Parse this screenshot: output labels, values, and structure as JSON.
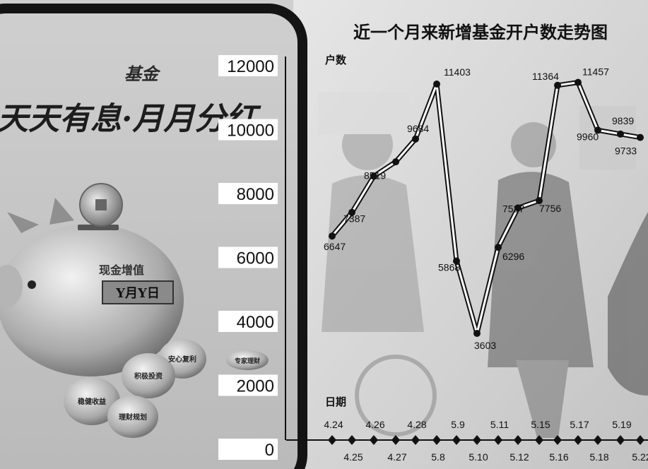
{
  "chart_data": {
    "type": "line",
    "title": "近一个月来新增基金开户数走势图",
    "ylabel": "户数",
    "xlabel": "日期",
    "ylim": [
      0,
      12000
    ],
    "yticks": [
      "12000",
      "10000",
      "8000",
      "6000",
      "4000",
      "2000",
      "0"
    ],
    "x": [
      "4.24",
      "4.25",
      "4.26",
      "4.27",
      "4.28",
      "5.8",
      "5.9",
      "5.10",
      "5.11",
      "5.12",
      "5.15",
      "5.16",
      "5.17",
      "5.18",
      "5.19",
      "5.22"
    ],
    "values": [
      6647,
      7387,
      8519,
      8970,
      9684,
      11403,
      5868,
      3603,
      6296,
      7527,
      7756,
      11364,
      11457,
      9960,
      9839,
      9733
    ],
    "labels": [
      "6647",
      "7387",
      "8519",
      "",
      "9684",
      "11403",
      "5868",
      "3603",
      "6296",
      "7527",
      "7756",
      "11364",
      "11457",
      "9960",
      "9839",
      "9733"
    ],
    "grid": false,
    "line_color": "#111111"
  },
  "poster": {
    "brand": "基金",
    "slogan": "天天有息·月月分红",
    "coin_tag": "现金增值",
    "coin_plate": "Y月Y日",
    "pig_tags": [
      "安心复利",
      "积极投资",
      "稳健收益",
      "理财规划",
      "专家理财"
    ]
  }
}
